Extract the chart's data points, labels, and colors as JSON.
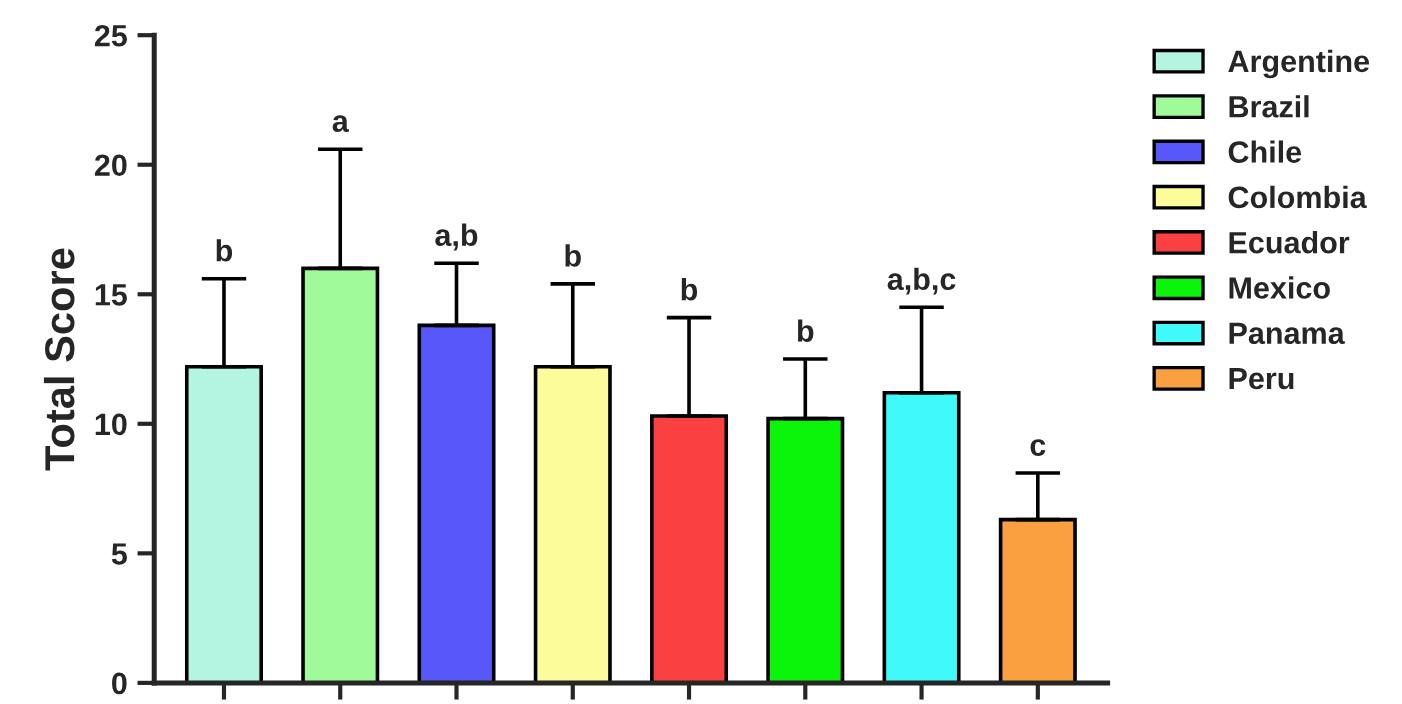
{
  "chart_data": {
    "type": "bar",
    "ylabel": "Total Score",
    "categories": [
      null,
      null,
      null,
      null,
      null,
      null,
      null,
      null
    ],
    "series": [
      {
        "name": "Argentine",
        "color": "#b3f5e0",
        "values": [
          12.2,
          null,
          null,
          null,
          null,
          null,
          null,
          null
        ],
        "errors": [
          [
            12.2,
            15.6
          ],
          null,
          null,
          null,
          null,
          null,
          null,
          null
        ]
      },
      {
        "name": "Brazil",
        "color": "#a0fa9a",
        "values": [
          null,
          16.0,
          null,
          null,
          null,
          null,
          null,
          null
        ],
        "errors": [
          null,
          [
            16.0,
            20.6
          ],
          null,
          null,
          null,
          null,
          null,
          null
        ]
      },
      {
        "name": "Chile",
        "color": "#5757fa",
        "values": [
          null,
          null,
          13.8,
          null,
          null,
          null,
          null,
          null
        ],
        "errors": [
          null,
          null,
          [
            13.8,
            16.2
          ],
          null,
          null,
          null,
          null,
          null
        ]
      },
      {
        "name": "Colombia",
        "color": "#fcfc9a",
        "values": [
          null,
          null,
          null,
          12.2,
          null,
          null,
          null,
          null
        ],
        "errors": [
          null,
          null,
          null,
          [
            12.2,
            15.4
          ],
          null,
          null,
          null,
          null
        ]
      },
      {
        "name": "Ecuador",
        "color": "#fa4040",
        "values": [
          null,
          null,
          null,
          null,
          10.3,
          null,
          null,
          null
        ],
        "errors": [
          null,
          null,
          null,
          null,
          [
            10.3,
            14.1
          ],
          null,
          null,
          null
        ]
      },
      {
        "name": "Mexico",
        "color": "#0af50a",
        "values": [
          null,
          null,
          null,
          null,
          null,
          10.2,
          null,
          null
        ],
        "errors": [
          null,
          null,
          null,
          null,
          null,
          [
            10.2,
            12.5
          ],
          null,
          null
        ]
      },
      {
        "name": "Panama",
        "color": "#40fafa",
        "values": [
          null,
          null,
          null,
          null,
          null,
          null,
          11.2,
          null
        ],
        "errors": [
          null,
          null,
          null,
          null,
          null,
          null,
          [
            11.2,
            14.5
          ],
          null
        ]
      },
      {
        "name": "Peru",
        "color": "#faa040",
        "values": [
          null,
          null,
          null,
          null,
          null,
          null,
          null,
          6.3
        ],
        "errors": [
          null,
          null,
          null,
          null,
          null,
          null,
          null,
          [
            6.3,
            8.1
          ]
        ]
      }
    ],
    "ylim": [
      0,
      25
    ],
    "yticks": [
      0,
      5,
      10,
      15,
      20,
      25
    ],
    "tick_labels": "y",
    "grid": false,
    "legend": "right",
    "annotations": [
      "b",
      "a",
      "a,b",
      "b",
      "b",
      "b",
      "a,b,c",
      "c"
    ]
  }
}
